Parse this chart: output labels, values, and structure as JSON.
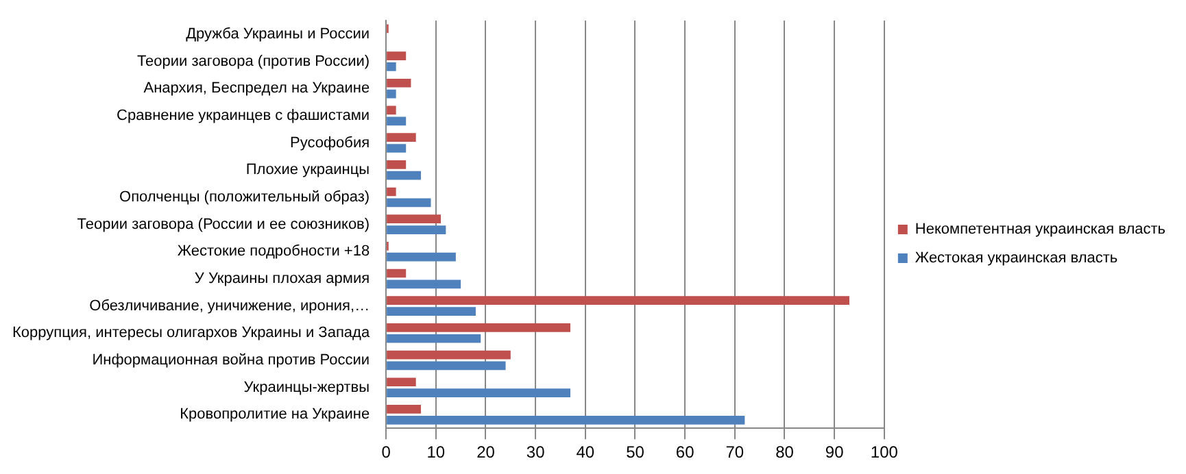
{
  "chart_data": {
    "type": "bar",
    "orientation": "horizontal",
    "categories": [
      "Дружба Украины и России",
      "Теории заговора (против России)",
      "Анархия, Беспредел на Украине",
      "Сравнение украинцев с фашистами",
      "Русофобия",
      "Плохие украинцы",
      "Ополченцы (положительный образ)",
      "Теории заговора (России и ее союзников)",
      "Жестокие подробности +18",
      "У Украины плохая армия",
      "Обезличивание, уничижение, ирония,…",
      "Коррупция, интересы олигархов Украины и Запада",
      "Информационная война против России",
      "Украинцы-жертвы",
      "Кровопролитие на Украине"
    ],
    "series": [
      {
        "name": "Некомпетентная украинская власть",
        "color": "#c0504d",
        "values": [
          0.5,
          4,
          5,
          2,
          6,
          4,
          2,
          11,
          0.5,
          4,
          93,
          37,
          25,
          6,
          7
        ]
      },
      {
        "name": "Жестокая украинская власть",
        "color": "#4f81bd",
        "values": [
          0,
          2,
          2,
          4,
          4,
          7,
          9,
          12,
          14,
          15,
          18,
          19,
          24,
          37,
          72
        ]
      }
    ],
    "xlim": [
      0,
      100
    ],
    "xticks": [
      0,
      10,
      20,
      30,
      40,
      50,
      60,
      70,
      80,
      90,
      100
    ],
    "grid": "x",
    "legend": "right"
  }
}
